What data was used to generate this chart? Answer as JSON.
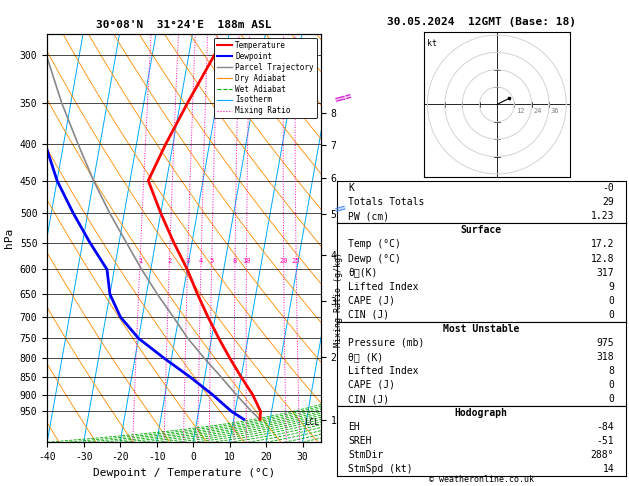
{
  "title_left": "30°08'N  31°24'E  188m ASL",
  "title_right": "30.05.2024  12GMT (Base: 18)",
  "xlabel": "Dewpoint / Temperature (°C)",
  "ylabel_left": "hPa",
  "pressure_ticks": [
    300,
    350,
    400,
    450,
    500,
    550,
    600,
    650,
    700,
    750,
    800,
    850,
    900,
    950
  ],
  "xlim": [
    -40,
    35
  ],
  "ylim_p": [
    1050,
    280
  ],
  "km_ticks": [
    1,
    2,
    3,
    4,
    5,
    6,
    7,
    8
  ],
  "km_pressures": [
    977,
    796,
    664,
    572,
    502,
    447,
    401,
    362
  ],
  "skew": 15.0,
  "temp_p": [
    975,
    950,
    900,
    850,
    800,
    750,
    700,
    650,
    600,
    550,
    500,
    450,
    400,
    350,
    300
  ],
  "temp_T": [
    17.2,
    17.0,
    14.0,
    10.0,
    6.0,
    2.0,
    -2.0,
    -6.0,
    -10.0,
    -15.0,
    -20.0,
    -25.0,
    -22.0,
    -18.0,
    -13.0
  ],
  "dewp_p": [
    975,
    950,
    900,
    850,
    800,
    750,
    700,
    650,
    600,
    550,
    500,
    450,
    400,
    350,
    300
  ],
  "dewp_T": [
    12.8,
    9.0,
    3.0,
    -4.0,
    -12.0,
    -20.0,
    -26.0,
    -30.0,
    -32.0,
    -38.0,
    -44.0,
    -50.0,
    -55.0,
    -58.0,
    -60.0
  ],
  "parcel_p": [
    975,
    950,
    900,
    850,
    800,
    750,
    700,
    650,
    600,
    550,
    500,
    450,
    400,
    350,
    300
  ],
  "parcel_T": [
    17.2,
    14.5,
    9.5,
    4.5,
    -1.0,
    -6.5,
    -11.5,
    -17.0,
    -22.5,
    -28.0,
    -34.0,
    -40.0,
    -46.0,
    -52.5,
    -59.0
  ],
  "lcl_pressure": 975,
  "mixing_ratios": [
    1,
    2,
    3,
    4,
    5,
    8,
    10,
    20,
    25
  ],
  "mixing_label_pressure": 590,
  "legend_items": [
    {
      "label": "Temperature",
      "color": "#ff0000",
      "style": "-",
      "lw": 1.5
    },
    {
      "label": "Dewpoint",
      "color": "#0000ff",
      "style": "-",
      "lw": 1.5
    },
    {
      "label": "Parcel Trajectory",
      "color": "#888888",
      "style": "-",
      "lw": 1.0
    },
    {
      "label": "Dry Adiabat",
      "color": "#ff8c00",
      "style": "-",
      "lw": 0.8
    },
    {
      "label": "Wet Adiabat",
      "color": "#00aa00",
      "style": "--",
      "lw": 0.8
    },
    {
      "label": "Isotherm",
      "color": "#00aaff",
      "style": "-",
      "lw": 0.8
    },
    {
      "label": "Mixing Ratio",
      "color": "#ff00aa",
      "style": ":",
      "lw": 0.8
    }
  ],
  "info_table": {
    "K": "-0",
    "Totals_Totals": "29",
    "PW_cm": "1.23",
    "Surface_Temp": "17.2",
    "Surface_Dewp": "12.8",
    "Surface_theta_e": "317",
    "Surface_LI": "9",
    "Surface_CAPE": "0",
    "Surface_CIN": "0",
    "MU_Pressure": "975",
    "MU_theta_e": "318",
    "MU_LI": "8",
    "MU_CAPE": "0",
    "MU_CIN": "0",
    "EH": "-84",
    "SREH": "-51",
    "StmDir": "288°",
    "StmSpd": "14"
  },
  "bg_color": "#ffffff",
  "isotherm_color": "#00aaff",
  "dry_adiabat_color": "#ff8c00",
  "wet_adiabat_color": "#00aa00",
  "mixing_color": "#ff00bb",
  "temp_color": "#ff0000",
  "dewp_color": "#0000ff",
  "parcel_color": "#888888"
}
